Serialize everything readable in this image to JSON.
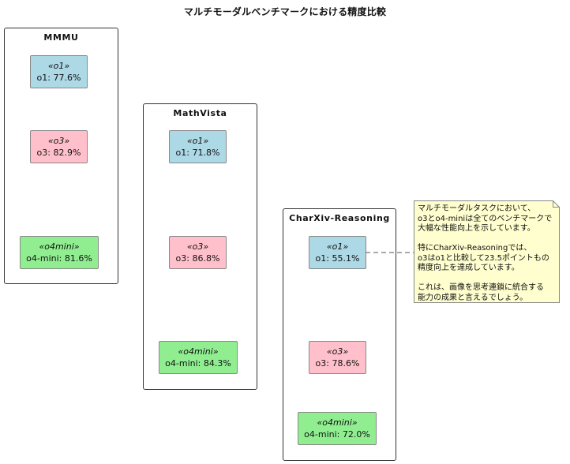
{
  "diagram": {
    "title": "マルチモーダルベンチマークにおける精度比較",
    "colors": {
      "o1": "#add8e6",
      "o3": "#ffc0cb",
      "o4mini": "#90ee90",
      "note": "#fefece"
    },
    "packages": [
      {
        "name": "MMMU",
        "nodes": [
          {
            "stereotype": "«o1»",
            "value": "o1: 77.6%"
          },
          {
            "stereotype": "«o3»",
            "value": "o3: 82.9%"
          },
          {
            "stereotype": "«o4mini»",
            "value": "o4-mini: 81.6%"
          }
        ]
      },
      {
        "name": "MathVista",
        "nodes": [
          {
            "stereotype": "«o1»",
            "value": "o1: 71.8%"
          },
          {
            "stereotype": "«o3»",
            "value": "o3: 86.8%"
          },
          {
            "stereotype": "«o4mini»",
            "value": "o4-mini: 84.3%"
          }
        ]
      },
      {
        "name": "CharXiv-Reasoning",
        "nodes": [
          {
            "stereotype": "«o1»",
            "value": "o1: 55.1%"
          },
          {
            "stereotype": "«o3»",
            "value": "o3: 78.6%"
          },
          {
            "stereotype": "«o4mini»",
            "value": "o4-mini: 72.0%"
          }
        ]
      }
    ],
    "note": {
      "paragraphs": [
        [
          "マルチモーダルタスクにおいて、",
          "o3とo4-miniは全てのベンチマークで",
          "大幅な性能向上を示しています。"
        ],
        [
          "特にCharXiv-Reasoningでは、",
          "o3はo1と比較して23.5ポイントもの",
          "精度向上を達成しています。"
        ],
        [
          "これは、画像を思考連鎖に統合する",
          "能力の成果と言えるでしょう。"
        ]
      ]
    }
  }
}
